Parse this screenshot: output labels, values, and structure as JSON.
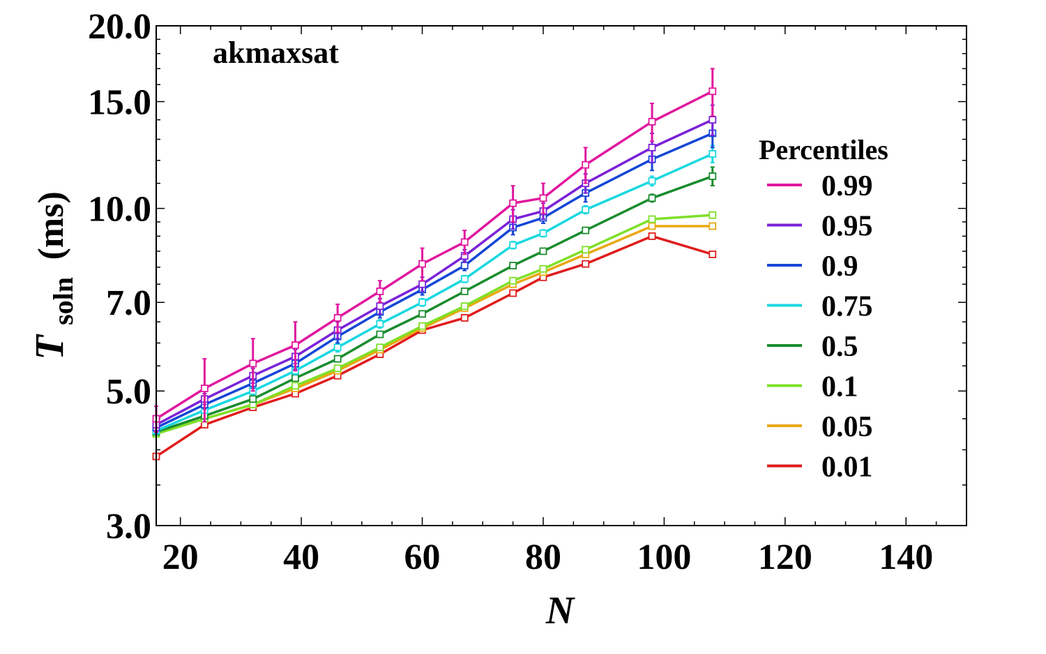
{
  "chart_data": {
    "type": "line",
    "title": "akmaxsat",
    "xlabel": "N",
    "ylabel_main": "T",
    "ylabel_sub": "soln",
    "ylabel_unit": "(ms)",
    "xlim": [
      16,
      150
    ],
    "ylim": [
      3.0,
      20.0
    ],
    "yscale": "log",
    "x_ticks": [
      20,
      40,
      60,
      80,
      100,
      120,
      140
    ],
    "x_tick_labels": [
      "20",
      "40",
      "60",
      "80",
      "100",
      "120",
      "140"
    ],
    "y_ticks": [
      3.0,
      5.0,
      7.0,
      10.0,
      15.0,
      20.0
    ],
    "y_tick_labels": [
      "3.0",
      "5.0",
      "7.0",
      "10.0",
      "15.0",
      "20.0"
    ],
    "legend_title": "Percentiles",
    "legend_position": "right",
    "x": [
      16,
      24,
      32,
      39,
      46,
      53,
      60,
      67,
      75,
      80,
      87,
      98,
      108
    ],
    "series": [
      {
        "name": "0.99",
        "color": "#e0189e",
        "values": [
          4.5,
          5.05,
          5.55,
          5.95,
          6.6,
          7.3,
          8.1,
          8.8,
          10.2,
          10.4,
          11.8,
          13.9,
          15.6
        ],
        "err": [
          0.22,
          0.6,
          0.55,
          0.55,
          0.35,
          0.3,
          0.5,
          0.4,
          0.7,
          0.6,
          0.8,
          1.0,
          1.4
        ]
      },
      {
        "name": "0.95",
        "color": "#7b22d8",
        "values": [
          4.4,
          4.85,
          5.3,
          5.7,
          6.3,
          6.9,
          7.5,
          8.35,
          9.6,
          9.9,
          11.0,
          12.6,
          14.0
        ],
        "err": [
          0.1,
          0.1,
          0.15,
          0.15,
          0.2,
          0.2,
          0.2,
          0.2,
          0.35,
          0.3,
          0.4,
          0.7,
          0.8
        ]
      },
      {
        "name": "0.9",
        "color": "#1546d6",
        "values": [
          4.35,
          4.75,
          5.15,
          5.55,
          6.15,
          6.75,
          7.35,
          8.05,
          9.3,
          9.65,
          10.6,
          12.05,
          13.3
        ],
        "err": [
          0.08,
          0.08,
          0.1,
          0.12,
          0.15,
          0.15,
          0.15,
          0.15,
          0.25,
          0.2,
          0.35,
          0.5,
          0.7
        ]
      },
      {
        "name": "0.75",
        "color": "#1ad8e0",
        "values": [
          4.3,
          4.65,
          5.0,
          5.4,
          5.9,
          6.45,
          7.0,
          7.65,
          8.7,
          9.1,
          9.95,
          11.1,
          12.3
        ],
        "err": [
          0.05,
          0.06,
          0.07,
          0.08,
          0.1,
          0.1,
          0.1,
          0.1,
          0.12,
          0.12,
          0.15,
          0.2,
          0.4
        ]
      },
      {
        "name": "0.5",
        "color": "#1a8c2e",
        "values": [
          4.28,
          4.55,
          4.85,
          5.25,
          5.65,
          6.2,
          6.7,
          7.3,
          8.05,
          8.5,
          9.2,
          10.4,
          11.3
        ],
        "err": [
          0.04,
          0.04,
          0.05,
          0.05,
          0.06,
          0.06,
          0.06,
          0.07,
          0.08,
          0.08,
          0.1,
          0.15,
          0.4
        ]
      },
      {
        "name": "0.1",
        "color": "#7ee028",
        "values": [
          4.25,
          4.5,
          4.75,
          5.1,
          5.45,
          5.9,
          6.4,
          6.9,
          7.6,
          7.95,
          8.55,
          9.6,
          9.75
        ],
        "err": [
          0.03,
          0.03,
          0.03,
          0.04,
          0.04,
          0.05,
          0.05,
          0.05,
          0.06,
          0.06,
          0.07,
          0.08,
          0.1
        ]
      },
      {
        "name": "0.05",
        "color": "#e8a810",
        "values": [
          4.25,
          4.5,
          4.75,
          5.05,
          5.4,
          5.85,
          6.35,
          6.85,
          7.5,
          7.85,
          8.4,
          9.35,
          9.35
        ],
        "err": [
          0.03,
          0.03,
          0.03,
          0.03,
          0.04,
          0.04,
          0.05,
          0.05,
          0.05,
          0.05,
          0.06,
          0.07,
          0.08
        ]
      },
      {
        "name": "0.01",
        "color": "#e01c1c",
        "values": [
          3.9,
          4.4,
          4.7,
          4.95,
          5.3,
          5.75,
          6.3,
          6.6,
          7.25,
          7.7,
          8.1,
          9.0,
          8.4
        ],
        "err": [
          0.03,
          0.03,
          0.03,
          0.03,
          0.03,
          0.04,
          0.04,
          0.04,
          0.05,
          0.05,
          0.05,
          0.06,
          0.07
        ]
      }
    ]
  }
}
